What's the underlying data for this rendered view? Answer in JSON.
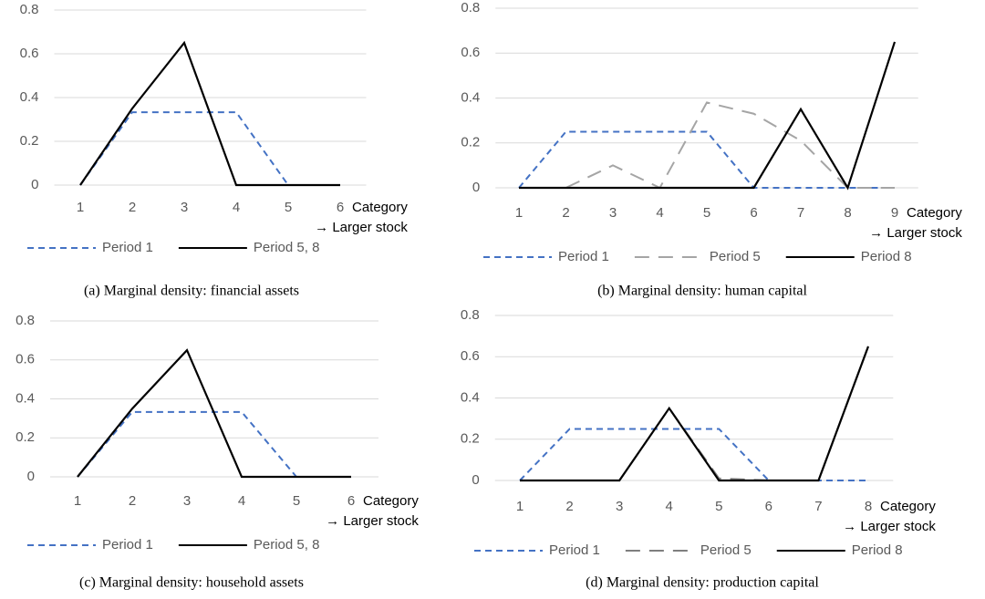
{
  "chart_data": [
    {
      "type": "line",
      "caption": "(a) Marginal density: financial assets",
      "categories": [
        "1",
        "2",
        "3",
        "4",
        "5",
        "6"
      ],
      "xlabel": [
        "Category",
        "→ Larger stock"
      ],
      "ylim": [
        0,
        0.8
      ],
      "yticks": [
        0,
        0.2,
        0.4,
        0.6,
        0.8
      ],
      "grid": true,
      "series": [
        {
          "name": "Period 1",
          "color": "#4472c4",
          "line_style": "dashed",
          "values": [
            0,
            0.333,
            0.333,
            0.333,
            0,
            0
          ]
        },
        {
          "name": "Period 5, 8",
          "color": "#000000",
          "line_style": "solid",
          "values": [
            0,
            0.35,
            0.65,
            0,
            0,
            0
          ]
        }
      ]
    },
    {
      "type": "line",
      "caption": "(b) Marginal density: human capital",
      "categories": [
        "1",
        "2",
        "3",
        "4",
        "5",
        "6",
        "7",
        "8",
        "9"
      ],
      "xlabel": [
        "Category",
        "→ Larger stock"
      ],
      "ylim": [
        0,
        0.8
      ],
      "yticks": [
        0,
        0.2,
        0.4,
        0.6,
        0.8
      ],
      "grid": true,
      "series": [
        {
          "name": "Period 1",
          "color": "#4472c4",
          "line_style": "dashed",
          "values": [
            0,
            0.25,
            0.25,
            0.25,
            0.25,
            0,
            0,
            0,
            0
          ]
        },
        {
          "name": "Period 5",
          "color": "#a5a5a5",
          "line_style": "long-dash",
          "values": [
            0,
            0,
            0.1,
            0,
            0.38,
            0.33,
            0.21,
            0,
            0
          ]
        },
        {
          "name": "Period 8",
          "color": "#000000",
          "line_style": "solid",
          "values": [
            0,
            0,
            0,
            0,
            0,
            0,
            0.35,
            0,
            0.65
          ]
        }
      ]
    },
    {
      "type": "line",
      "caption": "(c) Marginal density: household assets",
      "categories": [
        "1",
        "2",
        "3",
        "4",
        "5",
        "6"
      ],
      "xlabel": [
        "Category",
        "→ Larger stock"
      ],
      "ylim": [
        0,
        0.8
      ],
      "yticks": [
        0,
        0.2,
        0.4,
        0.6,
        0.8
      ],
      "grid": true,
      "series": [
        {
          "name": "Period 1",
          "color": "#4472c4",
          "line_style": "dashed",
          "values": [
            0,
            0.333,
            0.333,
            0.333,
            0,
            0
          ]
        },
        {
          "name": "Period 5, 8",
          "color": "#000000",
          "line_style": "solid",
          "values": [
            0,
            0.35,
            0.65,
            0,
            0,
            0
          ]
        }
      ]
    },
    {
      "type": "line",
      "caption": "(d) Marginal density: production capital",
      "categories": [
        "1",
        "2",
        "3",
        "4",
        "5",
        "6",
        "7",
        "8"
      ],
      "xlabel": [
        "Category",
        "→ Larger stock"
      ],
      "ylim": [
        0,
        0.8
      ],
      "yticks": [
        0,
        0.2,
        0.4,
        0.6,
        0.8
      ],
      "grid": true,
      "series": [
        {
          "name": "Period 1",
          "color": "#4472c4",
          "line_style": "dashed",
          "values": [
            0,
            0.25,
            0.25,
            0.25,
            0.25,
            0,
            0,
            0
          ]
        },
        {
          "name": "Period 5",
          "color": "#7f7f7f",
          "line_style": "long-dash",
          "values": [
            0,
            0,
            0,
            0.35,
            0.01,
            0,
            0,
            0.65
          ]
        },
        {
          "name": "Period 8",
          "color": "#000000",
          "line_style": "solid",
          "values": [
            0,
            0,
            0,
            0.35,
            0,
            0,
            0,
            0.65
          ]
        }
      ]
    }
  ]
}
